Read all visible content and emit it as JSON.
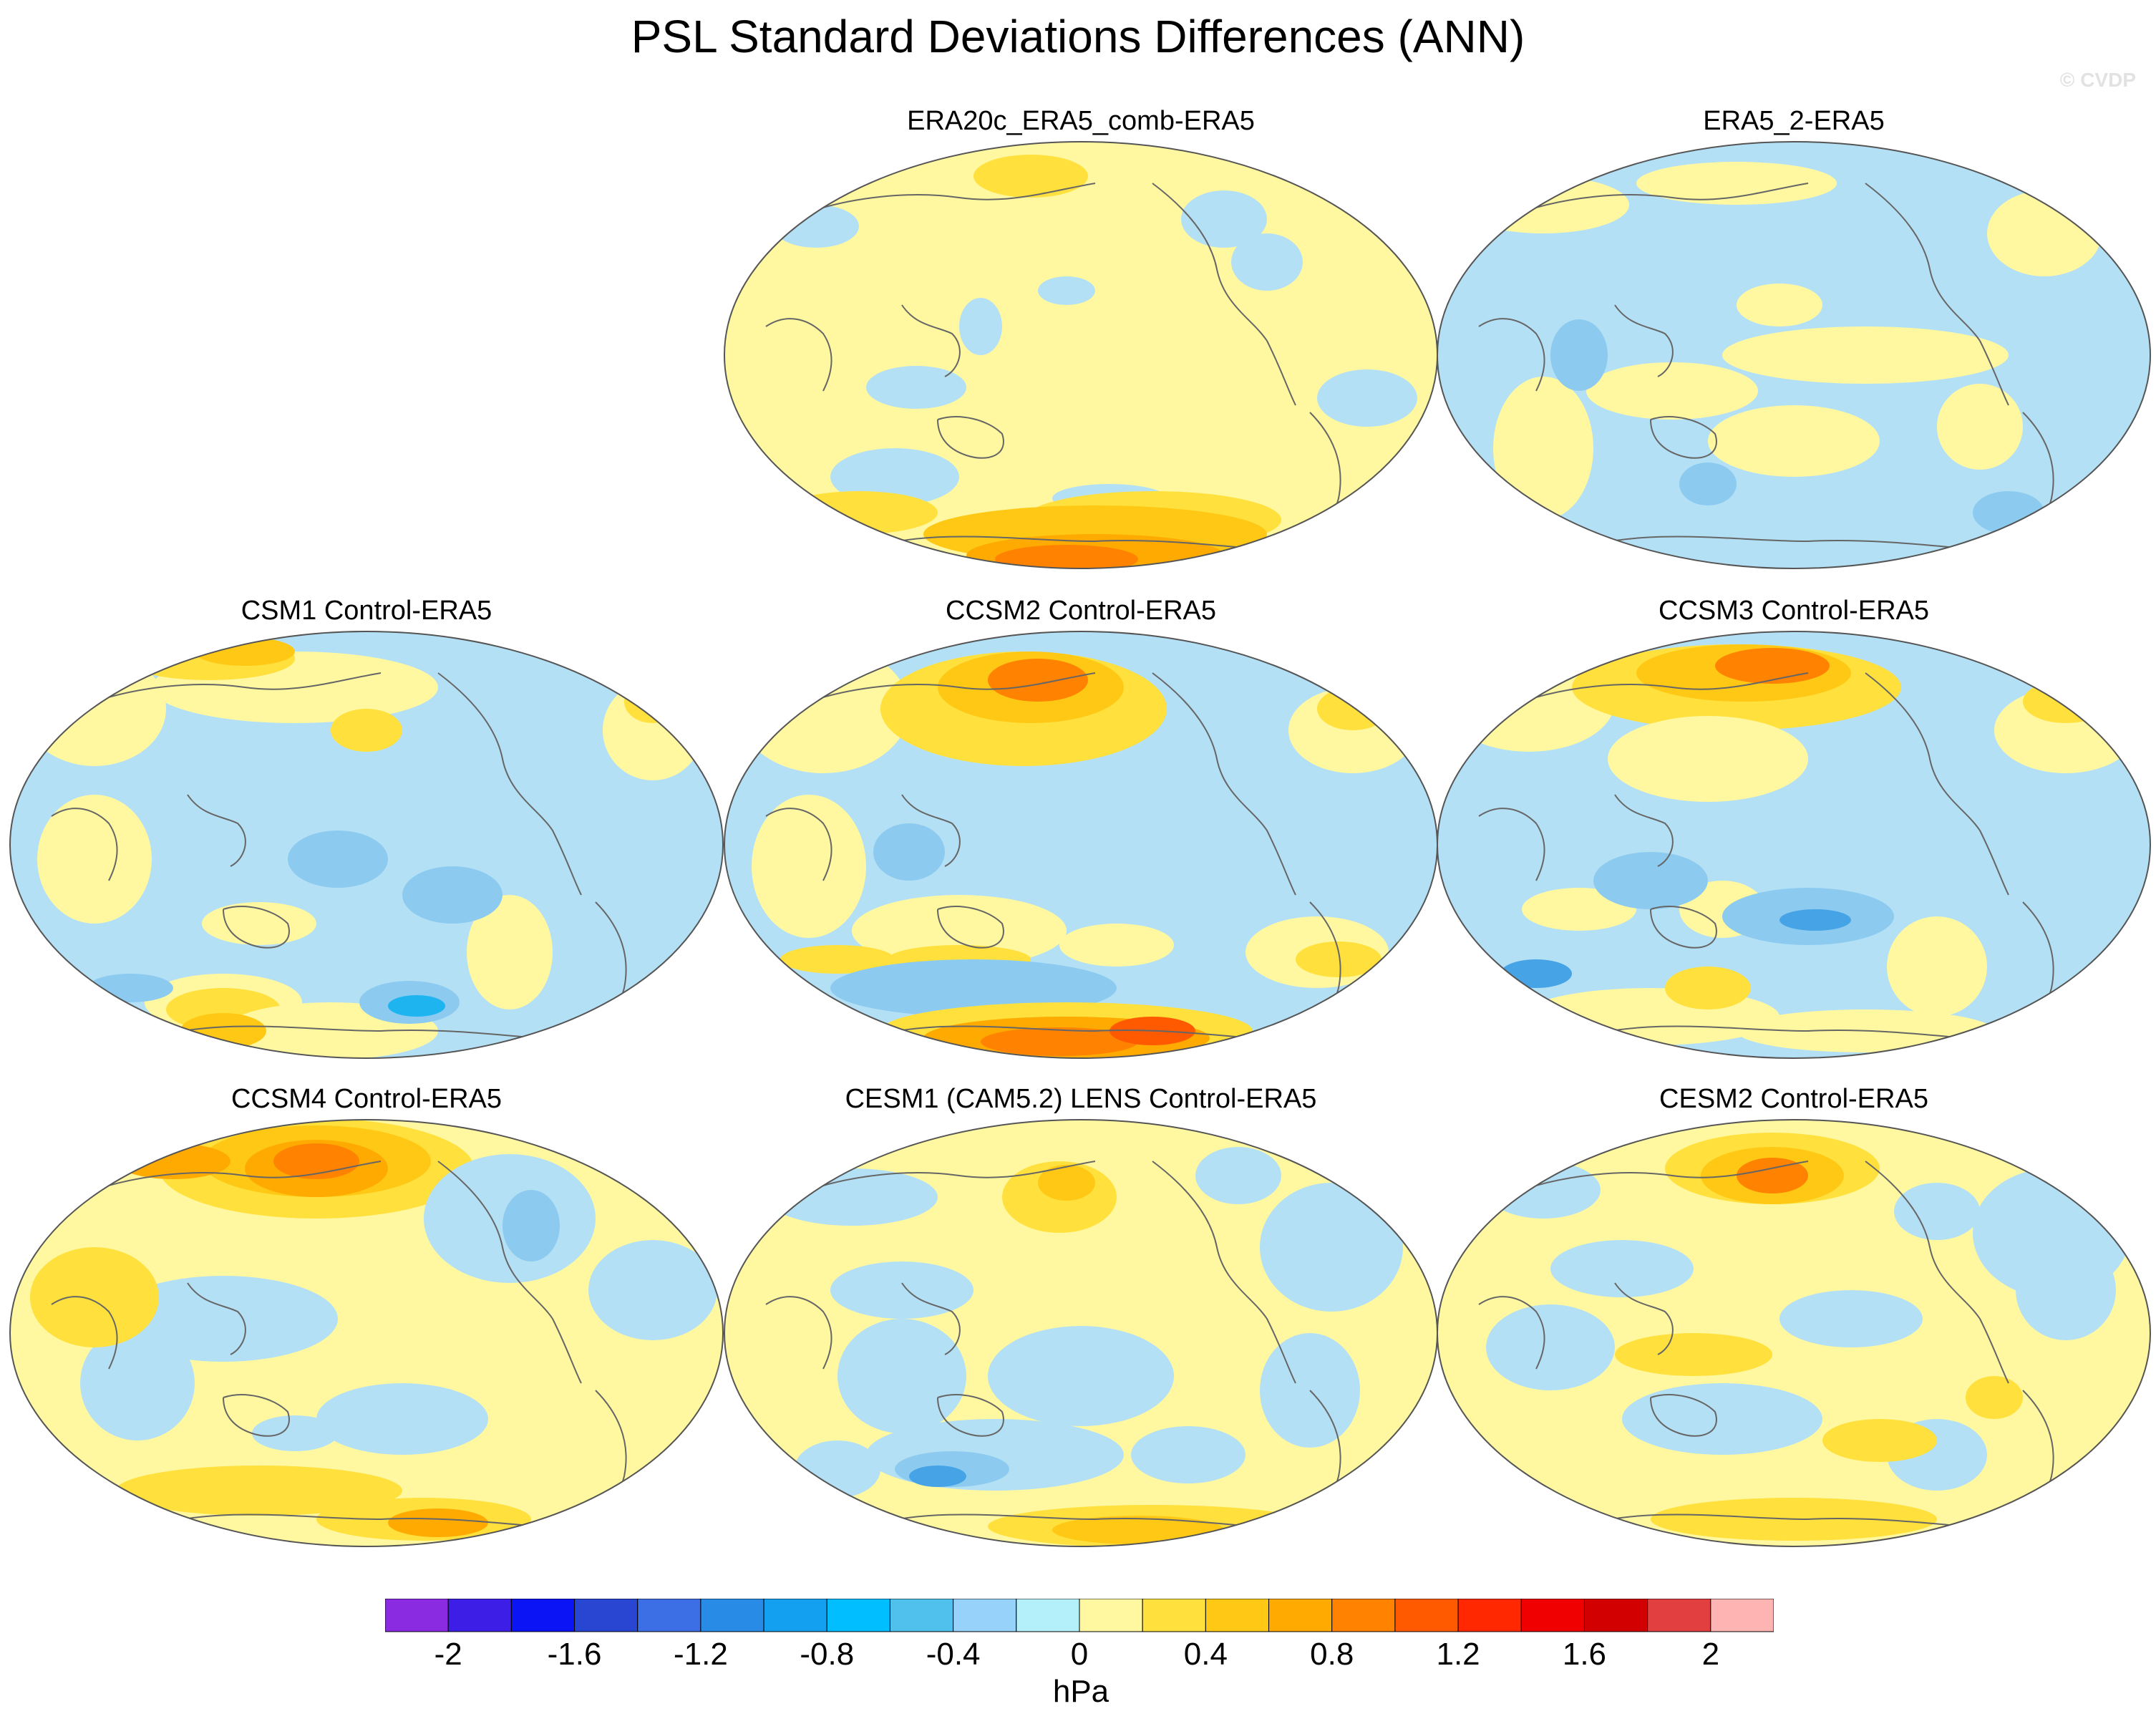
{
  "title": "PSL Standard Deviations Differences (ANN)",
  "watermark": "© CVDP",
  "panels": [
    {
      "label": "ERA20c_ERA5_comb-ERA5",
      "pattern": "era20c"
    },
    {
      "label": "ERA5_2-ERA5",
      "pattern": "era5_2"
    },
    {
      "label": "CSM1 Control-ERA5",
      "pattern": "csm1"
    },
    {
      "label": "CCSM2 Control-ERA5",
      "pattern": "ccsm2"
    },
    {
      "label": "CCSM3 Control-ERA5",
      "pattern": "ccsm3"
    },
    {
      "label": "CCSM4 Control-ERA5",
      "pattern": "ccsm4"
    },
    {
      "label": "CESM1 (CAM5.2) LENS Control-ERA5",
      "pattern": "cesm1"
    },
    {
      "label": "CESM2 Control-ERA5",
      "pattern": "cesm2"
    }
  ],
  "legend": {
    "units": "hPa",
    "levels": [
      -2,
      -1.8,
      -1.6,
      -1.4,
      -1.2,
      -1,
      -0.8,
      -0.6,
      -0.4,
      -0.2,
      0,
      0.2,
      0.4,
      0.6,
      0.8,
      1,
      1.2,
      1.4,
      1.6,
      1.8,
      2
    ],
    "tick_labels": [
      "-2",
      "-1.6",
      "-1.2",
      "-0.8",
      "-0.4",
      "0",
      "0.4",
      "0.8",
      "1.2",
      "1.6",
      "2"
    ],
    "colors": [
      "#8a2be2",
      "#3c1ee6",
      "#0a14f5",
      "#2846d2",
      "#3c6ee6",
      "#288ce6",
      "#14a0f0",
      "#00beff",
      "#50c0ec",
      "#96d2fa",
      "#b4f0fa",
      "#fff8a0",
      "#ffe03c",
      "#ffc814",
      "#ffaa00",
      "#ff8200",
      "#ff5a00",
      "#ff2800",
      "#f00000",
      "#d20000",
      "#e24040",
      "#ffb4b4"
    ]
  }
}
